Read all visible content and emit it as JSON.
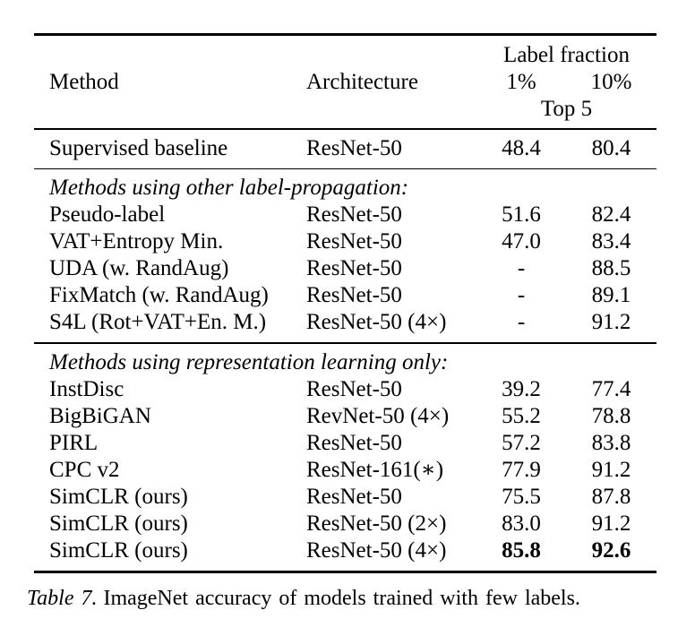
{
  "table": {
    "header": {
      "label_fraction": "Label fraction",
      "method": "Method",
      "architecture": "Architecture",
      "pct1": "1%",
      "pct10": "10%",
      "top5": "Top 5"
    },
    "sections": [
      {
        "label": null,
        "rows": [
          {
            "method": "Supervised baseline",
            "arch": "ResNet-50",
            "v1": "48.4",
            "v10": "80.4"
          }
        ]
      },
      {
        "label": "Methods using other label-propagation:",
        "rows": [
          {
            "method": "Pseudo-label",
            "arch": "ResNet-50",
            "v1": "51.6",
            "v10": "82.4"
          },
          {
            "method": "VAT+Entropy Min.",
            "arch": "ResNet-50",
            "v1": "47.0",
            "v10": "83.4"
          },
          {
            "method": "UDA (w. RandAug)",
            "arch": "ResNet-50",
            "v1": "-",
            "v10": "88.5"
          },
          {
            "method": "FixMatch (w. RandAug)",
            "arch": "ResNet-50",
            "v1": "-",
            "v10": "89.1"
          },
          {
            "method": "S4L (Rot+VAT+En. M.)",
            "arch": "ResNet-50 (4×)",
            "v1": "-",
            "v10": "91.2"
          }
        ]
      },
      {
        "label": "Methods using representation learning only:",
        "rows": [
          {
            "method": "InstDisc",
            "arch": "ResNet-50",
            "v1": "39.2",
            "v10": "77.4"
          },
          {
            "method": "BigBiGAN",
            "arch": "RevNet-50 (4×)",
            "v1": "55.2",
            "v10": "78.8"
          },
          {
            "method": "PIRL",
            "arch": "ResNet-50",
            "v1": "57.2",
            "v10": "83.8"
          },
          {
            "method": "CPC v2",
            "arch": "ResNet-161(∗)",
            "v1": "77.9",
            "v10": "91.2"
          },
          {
            "method": "SimCLR (ours)",
            "arch": "ResNet-50",
            "v1": "75.5",
            "v10": "87.8"
          },
          {
            "method": "SimCLR (ours)",
            "arch": "ResNet-50 (2×)",
            "v1": "83.0",
            "v10": "91.2"
          },
          {
            "method": "SimCLR (ours)",
            "arch": "ResNet-50 (4×)",
            "v1": "85.8",
            "v10": "92.6",
            "bold_values": true
          }
        ]
      }
    ],
    "colors": {
      "text": "#000000",
      "background": "#ffffff",
      "rule": "#000000"
    }
  },
  "caption": {
    "label": "Table 7.",
    "text": "ImageNet accuracy of models trained with few labels."
  }
}
